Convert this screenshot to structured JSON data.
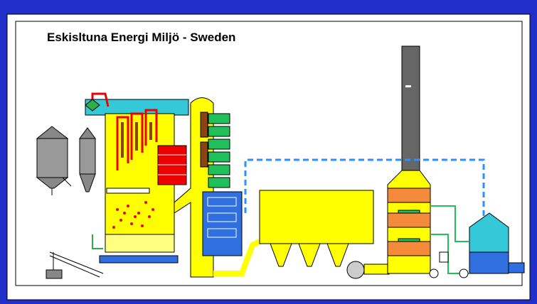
{
  "title": "Eskisltuna Energi Miljö - Sweden"
}
